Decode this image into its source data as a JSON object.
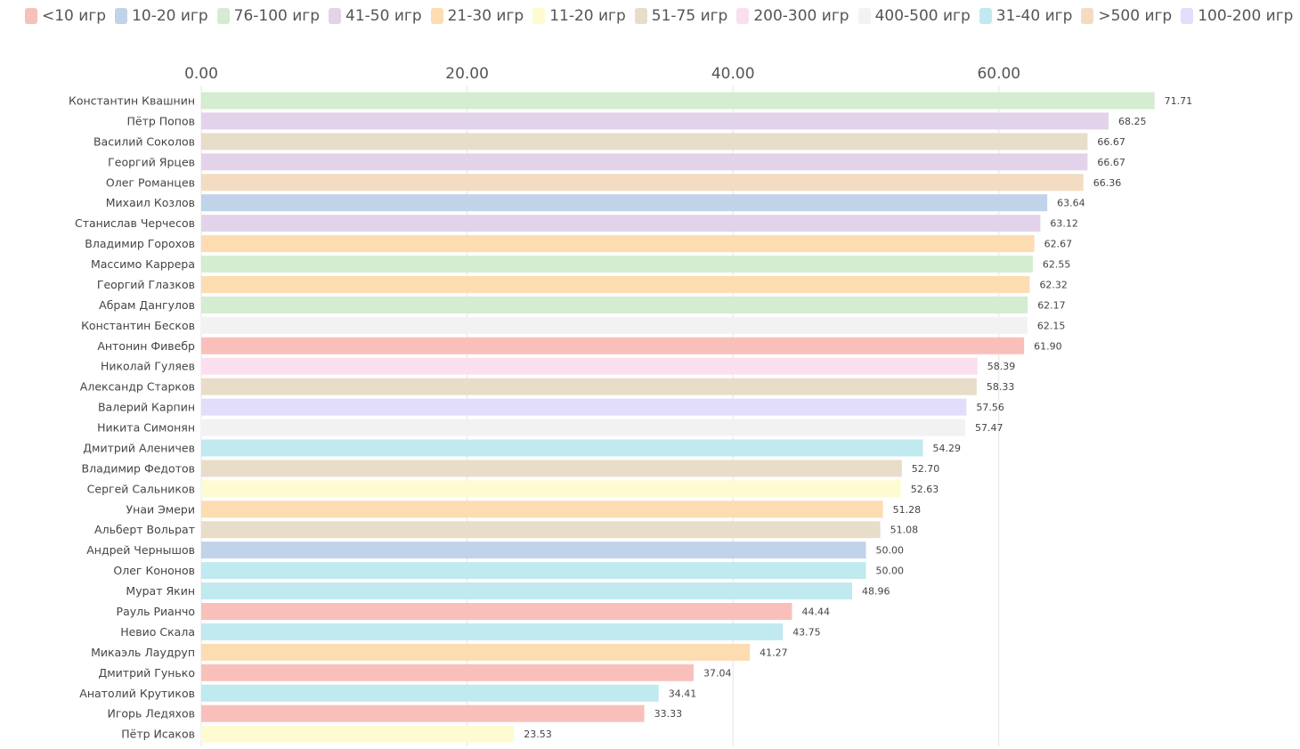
{
  "chart_data": {
    "type": "bar",
    "orientation": "horizontal",
    "title": "",
    "xlabel": "",
    "ylabel": "",
    "xlim": [
      0,
      72
    ],
    "x_ticks": [
      0,
      20,
      40,
      60
    ],
    "x_tick_labels": [
      "0.00",
      "20.00",
      "40.00",
      "60.00"
    ],
    "grid": true,
    "legend_position": "top-left",
    "legend": [
      {
        "label": "<10 игр",
        "color": "#f9c0bb"
      },
      {
        "label": "10-20 игр",
        "color": "#c0d3e8"
      },
      {
        "label": "76-100 игр",
        "color": "#d4ecd0"
      },
      {
        "label": "41-50 игр",
        "color": "#e2d3ea"
      },
      {
        "label": "21-30 игр",
        "color": "#fddcb2"
      },
      {
        "label": "11-20 игр",
        "color": "#fefbd3"
      },
      {
        "label": "51-75 игр",
        "color": "#e8ddc9"
      },
      {
        "label": "200-300 игр",
        "color": "#fbdfee"
      },
      {
        "label": "400-500 игр",
        "color": "#f2f2f2"
      },
      {
        "label": "31-40 игр",
        "color": "#c0e9f0"
      },
      {
        "label": ">500 игр",
        "color": "#f3dcc2"
      },
      {
        "label": "100-200 игр",
        "color": "#e2ddfa"
      }
    ],
    "bars": [
      {
        "name": "Константин Квашнин",
        "value": 71.71,
        "label": "71.71",
        "group": "76-100 игр"
      },
      {
        "name": "Пётр Попов",
        "value": 68.25,
        "label": "68.25",
        "group": "41-50 игр"
      },
      {
        "name": "Василий Соколов",
        "value": 66.67,
        "label": "66.67",
        "group": "51-75 игр"
      },
      {
        "name": "Георгий Ярцев",
        "value": 66.67,
        "label": "66.67",
        "group": "41-50 игр"
      },
      {
        "name": "Олег Романцев",
        "value": 66.36,
        "label": "66.36",
        "group": ">500 игр"
      },
      {
        "name": "Михаил Козлов",
        "value": 63.64,
        "label": "63.64",
        "group": "10-20 игр"
      },
      {
        "name": "Станислав Черчесов",
        "value": 63.12,
        "label": "63.12",
        "group": "41-50 игр"
      },
      {
        "name": "Владимир Горохов",
        "value": 62.67,
        "label": "62.67",
        "group": "21-30 игр"
      },
      {
        "name": "Массимо Каррера",
        "value": 62.55,
        "label": "62.55",
        "group": "76-100 игр"
      },
      {
        "name": "Георгий Глазков",
        "value": 62.32,
        "label": "62.32",
        "group": "21-30 игр"
      },
      {
        "name": "Абрам Дангулов",
        "value": 62.17,
        "label": "62.17",
        "group": "76-100 игр"
      },
      {
        "name": "Константин Бесков",
        "value": 62.15,
        "label": "62.15",
        "group": "400-500 игр"
      },
      {
        "name": "Антонин Фивебр",
        "value": 61.9,
        "label": "61.90",
        "group": "<10 игр"
      },
      {
        "name": "Николай Гуляев",
        "value": 58.39,
        "label": "58.39",
        "group": "200-300 игр"
      },
      {
        "name": "Александр Старков",
        "value": 58.33,
        "label": "58.33",
        "group": "51-75 игр"
      },
      {
        "name": "Валерий Карпин",
        "value": 57.56,
        "label": "57.56",
        "group": "100-200 игр"
      },
      {
        "name": "Никита Симонян",
        "value": 57.47,
        "label": "57.47",
        "group": "400-500 игр"
      },
      {
        "name": "Дмитрий Аленичев",
        "value": 54.29,
        "label": "54.29",
        "group": "31-40 игр"
      },
      {
        "name": "Владимир Федотов",
        "value": 52.7,
        "label": "52.70",
        "group": "51-75 игр"
      },
      {
        "name": "Сергей Сальников",
        "value": 52.63,
        "label": "52.63",
        "group": "11-20 игр"
      },
      {
        "name": "Унаи Эмери",
        "value": 51.28,
        "label": "51.28",
        "group": "21-30 игр"
      },
      {
        "name": "Альберт Вольрат",
        "value": 51.08,
        "label": "51.08",
        "group": "51-75 игр"
      },
      {
        "name": "Андрей Чернышов",
        "value": 50.0,
        "label": "50.00",
        "group": "10-20 игр"
      },
      {
        "name": "Олег Кононов",
        "value": 50.0,
        "label": "50.00",
        "group": "31-40 игр"
      },
      {
        "name": "Мурат Якин",
        "value": 48.96,
        "label": "48.96",
        "group": "31-40 игр"
      },
      {
        "name": "Рауль Рианчо",
        "value": 44.44,
        "label": "44.44",
        "group": "<10 игр"
      },
      {
        "name": "Невио Скала",
        "value": 43.75,
        "label": "43.75",
        "group": "31-40 игр"
      },
      {
        "name": "Микаэль Лаудруп",
        "value": 41.27,
        "label": "41.27",
        "group": "21-30 игр"
      },
      {
        "name": "Дмитрий Гунько",
        "value": 37.04,
        "label": "37.04",
        "group": "<10 игр"
      },
      {
        "name": "Анатолий Крутиков",
        "value": 34.41,
        "label": "34.41",
        "group": "31-40 игр"
      },
      {
        "name": "Игорь Ледяхов",
        "value": 33.33,
        "label": "33.33",
        "group": "<10 игр"
      },
      {
        "name": "Пётр Исаков",
        "value": 23.53,
        "label": "23.53",
        "group": "11-20 игр"
      }
    ]
  }
}
